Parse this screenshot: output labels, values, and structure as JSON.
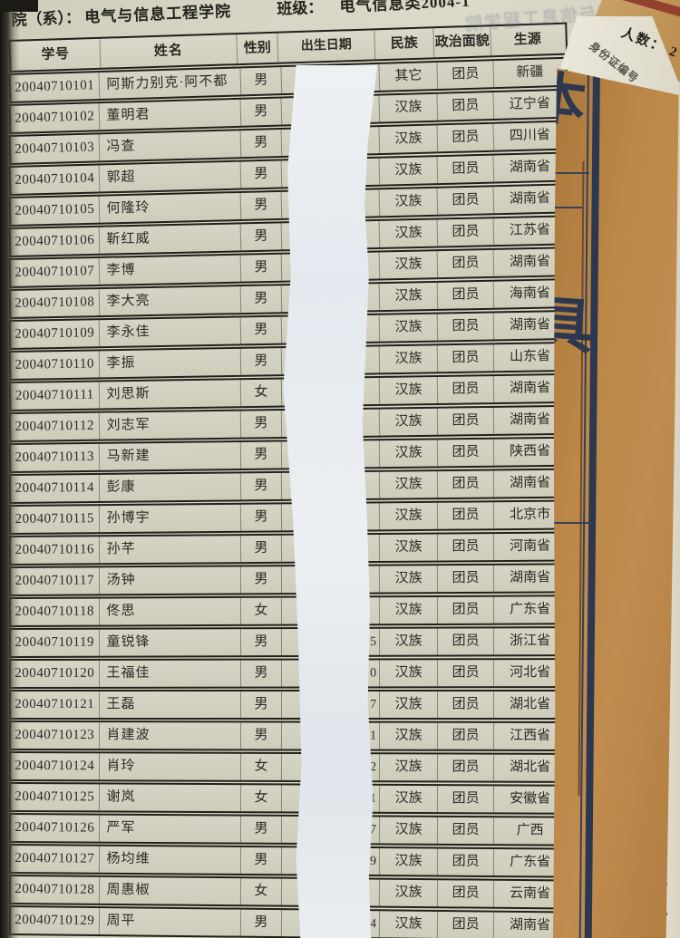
{
  "header": {
    "dept_label": "院（系）：",
    "dept_value": "电气与信息工程学院",
    "class_label": "班级：",
    "class_value": "电气信息类2004-1",
    "count_text": "人数：  2",
    "id_column_label": "身份证编号",
    "bleed_text": "电气与信息工程学院"
  },
  "folder": {
    "glyph_top_fragment": "本",
    "glyph_bottom_fragment": "具",
    "line_color": "#2d3850",
    "paper_color": "#b8864a"
  },
  "table": {
    "columns": [
      "学号",
      "姓名",
      "性别",
      "出生日期",
      "民族",
      "政治面貌",
      "生源"
    ],
    "rows": [
      {
        "id": "20040710101",
        "name": "阿斯力别克·阿不都",
        "gender": "男",
        "date_fragment": "",
        "ethnicity": "其它",
        "politics": "团员",
        "origin": "新疆"
      },
      {
        "id": "20040710102",
        "name": "董明君",
        "gender": "男",
        "date_fragment": "",
        "ethnicity": "汉族",
        "politics": "团员",
        "origin": "辽宁省"
      },
      {
        "id": "20040710103",
        "name": "冯查",
        "gender": "男",
        "date_fragment": "",
        "ethnicity": "汉族",
        "politics": "团员",
        "origin": "四川省"
      },
      {
        "id": "20040710104",
        "name": "郭超",
        "gender": "男",
        "date_fragment": "",
        "ethnicity": "汉族",
        "politics": "团员",
        "origin": "湖南省"
      },
      {
        "id": "20040710105",
        "name": "何隆玲",
        "gender": "男",
        "date_fragment": "",
        "ethnicity": "汉族",
        "politics": "团员",
        "origin": "湖南省"
      },
      {
        "id": "20040710106",
        "name": "靳红威",
        "gender": "男",
        "date_fragment": "",
        "ethnicity": "汉族",
        "politics": "团员",
        "origin": "江苏省"
      },
      {
        "id": "20040710107",
        "name": "李博",
        "gender": "男",
        "date_fragment": "",
        "ethnicity": "汉族",
        "politics": "团员",
        "origin": "湖南省"
      },
      {
        "id": "20040710108",
        "name": "李大亮",
        "gender": "男",
        "date_fragment": "",
        "ethnicity": "汉族",
        "politics": "团员",
        "origin": "海南省"
      },
      {
        "id": "20040710109",
        "name": "李永佳",
        "gender": "男",
        "date_fragment": "",
        "ethnicity": "汉族",
        "politics": "团员",
        "origin": "湖南省"
      },
      {
        "id": "20040710110",
        "name": "李振",
        "gender": "男",
        "date_fragment": "",
        "ethnicity": "汉族",
        "politics": "团员",
        "origin": "山东省"
      },
      {
        "id": "20040710111",
        "name": "刘思斯",
        "gender": "女",
        "date_fragment": "",
        "ethnicity": "汉族",
        "politics": "团员",
        "origin": "湖南省"
      },
      {
        "id": "20040710112",
        "name": "刘志军",
        "gender": "男",
        "date_fragment": "",
        "ethnicity": "汉族",
        "politics": "团员",
        "origin": "湖南省"
      },
      {
        "id": "20040710113",
        "name": "马新建",
        "gender": "男",
        "date_fragment": "",
        "ethnicity": "汉族",
        "politics": "团员",
        "origin": "陕西省"
      },
      {
        "id": "20040710114",
        "name": "彭康",
        "gender": "男",
        "date_fragment": "",
        "ethnicity": "汉族",
        "politics": "团员",
        "origin": "湖南省"
      },
      {
        "id": "20040710115",
        "name": "孙博宇",
        "gender": "男",
        "date_fragment": "",
        "ethnicity": "汉族",
        "politics": "团员",
        "origin": "北京市"
      },
      {
        "id": "20040710116",
        "name": "孙芊",
        "gender": "男",
        "date_fragment": "",
        "ethnicity": "汉族",
        "politics": "团员",
        "origin": "河南省"
      },
      {
        "id": "20040710117",
        "name": "汤钟",
        "gender": "男",
        "date_fragment": "",
        "ethnicity": "汉族",
        "politics": "团员",
        "origin": "湖南省"
      },
      {
        "id": "20040710118",
        "name": "佟思",
        "gender": "女",
        "date_fragment": "",
        "ethnicity": "汉族",
        "politics": "团员",
        "origin": "广东省"
      },
      {
        "id": "20040710119",
        "name": "童锐锋",
        "gender": "男",
        "date_fragment": "5",
        "ethnicity": "汉族",
        "politics": "团员",
        "origin": "浙江省"
      },
      {
        "id": "20040710120",
        "name": "王福佳",
        "gender": "男",
        "date_fragment": "0",
        "ethnicity": "汉族",
        "politics": "团员",
        "origin": "河北省"
      },
      {
        "id": "20040710121",
        "name": "王磊",
        "gender": "男",
        "date_fragment": "7",
        "ethnicity": "汉族",
        "politics": "团员",
        "origin": "湖北省"
      },
      {
        "id": "20040710123",
        "name": "肖建波",
        "gender": "男",
        "date_fragment": "1",
        "ethnicity": "汉族",
        "politics": "团员",
        "origin": "江西省"
      },
      {
        "id": "20040710124",
        "name": "肖玲",
        "gender": "女",
        "date_fragment": "2",
        "ethnicity": "汉族",
        "politics": "团员",
        "origin": "湖北省"
      },
      {
        "id": "20040710125",
        "name": "谢岚",
        "gender": "女",
        "date_fragment": "1",
        "ethnicity": "汉族",
        "politics": "团员",
        "origin": "安徽省"
      },
      {
        "id": "20040710126",
        "name": "严军",
        "gender": "男",
        "date_fragment": "7",
        "ethnicity": "汉族",
        "politics": "团员",
        "origin": "广西"
      },
      {
        "id": "20040710127",
        "name": "杨均维",
        "gender": "男",
        "date_fragment": "9",
        "ethnicity": "汉族",
        "politics": "团员",
        "origin": "广东省"
      },
      {
        "id": "20040710128",
        "name": "周惠椒",
        "gender": "女",
        "date_fragment": "",
        "ethnicity": "汉族",
        "politics": "团员",
        "origin": "云南省"
      },
      {
        "id": "20040710129",
        "name": "周平",
        "gender": "男",
        "date_fragment": "4",
        "ethnicity": "汉族",
        "politics": "团员",
        "origin": "湖南省"
      }
    ]
  }
}
